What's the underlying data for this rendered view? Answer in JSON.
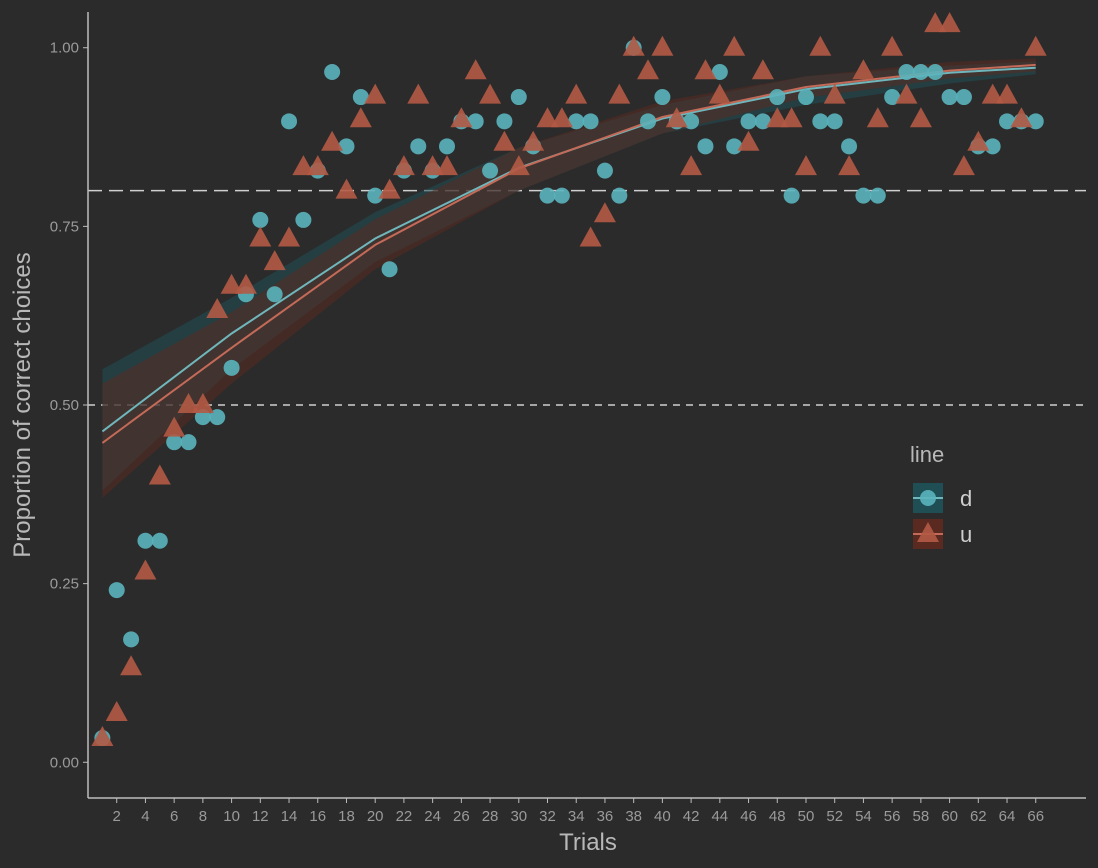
{
  "chart_data": {
    "type": "scatter",
    "xlabel": "Trials",
    "ylabel": "Proportion of correct choices",
    "xlim": [
      0,
      69.5
    ],
    "ylim": [
      -0.05,
      1.05
    ],
    "xticks": [
      2,
      4,
      6,
      8,
      10,
      12,
      14,
      16,
      18,
      20,
      22,
      24,
      26,
      28,
      30,
      32,
      34,
      36,
      38,
      40,
      42,
      44,
      46,
      48,
      50,
      52,
      54,
      56,
      58,
      60,
      62,
      64,
      66
    ],
    "yticks": [
      0.0,
      0.25,
      0.5,
      0.75,
      1.0
    ],
    "ytick_labels": [
      "0.00",
      "0.25",
      "0.50",
      "0.75",
      "1.00"
    ],
    "grid": false,
    "reference_lines": [
      {
        "y": 0.8,
        "style": "long-dash"
      },
      {
        "y": 0.5,
        "style": "short-dash"
      }
    ],
    "legend": {
      "title": "line",
      "position": "right",
      "entries": [
        "d",
        "u"
      ]
    },
    "series": [
      {
        "name": "d",
        "marker": "circle",
        "color": "#5ab4bd",
        "x": [
          1,
          2,
          3,
          4,
          5,
          6,
          7,
          8,
          9,
          10,
          11,
          12,
          13,
          14,
          15,
          16,
          17,
          18,
          19,
          20,
          21,
          22,
          23,
          24,
          25,
          26,
          27,
          28,
          29,
          30,
          31,
          32,
          33,
          34,
          35,
          36,
          37,
          38,
          39,
          40,
          41,
          42,
          43,
          44,
          45,
          46,
          47,
          48,
          49,
          50,
          51,
          52,
          53,
          54,
          55,
          56,
          57,
          58,
          59,
          60,
          61,
          62,
          63,
          64,
          65,
          66
        ],
        "y": [
          0.034,
          0.241,
          0.172,
          0.31,
          0.31,
          0.448,
          0.448,
          0.483,
          0.483,
          0.552,
          0.655,
          0.759,
          0.655,
          0.897,
          0.759,
          0.828,
          0.966,
          0.862,
          0.931,
          0.793,
          0.69,
          0.828,
          0.862,
          0.828,
          0.862,
          0.897,
          0.897,
          0.828,
          0.897,
          0.931,
          0.862,
          0.793,
          0.793,
          0.897,
          0.897,
          0.828,
          0.793,
          1.0,
          0.897,
          0.931,
          0.897,
          0.897,
          0.862,
          0.966,
          0.862,
          0.897,
          0.897,
          0.931,
          0.793,
          0.931,
          0.897,
          0.897,
          0.862,
          0.793,
          0.793,
          0.931,
          0.966,
          0.966,
          0.966,
          0.931,
          0.931,
          0.862,
          0.862,
          0.897,
          0.897,
          0.897
        ],
        "fit": {
          "x": [
            1,
            10,
            20,
            30,
            40,
            50,
            60,
            66
          ],
          "y": [
            0.463,
            0.6,
            0.733,
            0.832,
            0.901,
            0.942,
            0.965,
            0.972
          ],
          "ci_lower": [
            0.38,
            0.55,
            0.7,
            0.8,
            0.88,
            0.92,
            0.95,
            0.963
          ],
          "ci_upper": [
            0.55,
            0.65,
            0.77,
            0.86,
            0.92,
            0.96,
            0.975,
            0.981
          ]
        }
      },
      {
        "name": "u",
        "marker": "triangle",
        "color": "#b35a45",
        "x": [
          1,
          2,
          3,
          4,
          5,
          6,
          7,
          8,
          9,
          10,
          11,
          12,
          13,
          14,
          15,
          16,
          17,
          18,
          19,
          20,
          21,
          22,
          23,
          24,
          25,
          26,
          27,
          28,
          29,
          30,
          31,
          32,
          33,
          34,
          35,
          36,
          37,
          38,
          39,
          40,
          41,
          42,
          43,
          44,
          45,
          46,
          47,
          48,
          49,
          50,
          51,
          52,
          53,
          54,
          55,
          56,
          57,
          58,
          59,
          60,
          61,
          62,
          63,
          64,
          65,
          66
        ],
        "y": [
          0.034,
          0.069,
          0.133,
          0.267,
          0.4,
          0.467,
          0.5,
          0.5,
          0.633,
          0.667,
          0.667,
          0.733,
          0.7,
          0.733,
          0.833,
          0.833,
          0.867,
          0.8,
          0.9,
          0.933,
          0.8,
          0.833,
          0.933,
          0.833,
          0.833,
          0.9,
          0.967,
          0.933,
          0.867,
          0.833,
          0.867,
          0.9,
          0.9,
          0.933,
          0.733,
          0.767,
          0.933,
          1.0,
          0.967,
          1.0,
          0.9,
          0.833,
          0.967,
          0.933,
          1.0,
          0.867,
          0.967,
          0.9,
          0.9,
          0.833,
          1.0,
          0.933,
          0.833,
          0.967,
          0.9,
          1.0,
          0.933,
          0.9,
          1.033,
          1.033,
          0.833,
          0.867,
          0.933,
          0.933,
          0.9,
          1.0
        ],
        "fit": {
          "x": [
            1,
            10,
            20,
            30,
            40,
            50,
            60,
            66
          ],
          "y": [
            0.447,
            0.58,
            0.724,
            0.831,
            0.903,
            0.945,
            0.968,
            0.976
          ],
          "ci_lower": [
            0.37,
            0.53,
            0.69,
            0.8,
            0.88,
            0.93,
            0.957,
            0.967
          ],
          "ci_upper": [
            0.53,
            0.63,
            0.76,
            0.86,
            0.925,
            0.96,
            0.98,
            0.985
          ]
        }
      }
    ]
  }
}
